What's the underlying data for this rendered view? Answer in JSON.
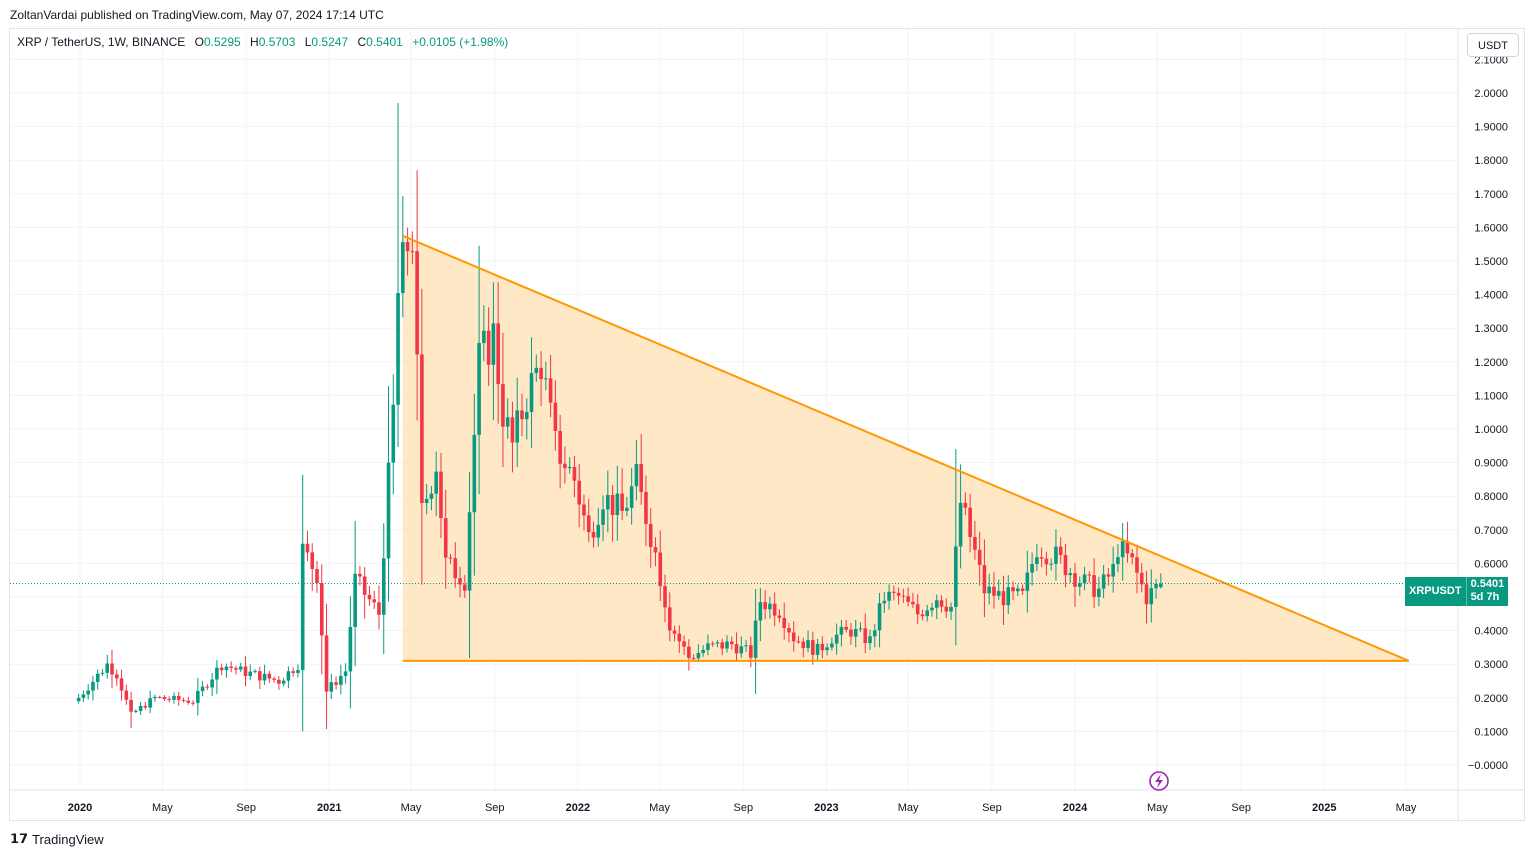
{
  "header": {
    "published": "ZoltanVardai published on TradingView.com, May 07, 2024 17:14 UTC"
  },
  "legend": {
    "symbol": "XRP / TetherUS, 1W, BINANCE",
    "o_label": "O",
    "o_value": "0.5295",
    "h_label": "H",
    "h_value": "0.5703",
    "l_label": "L",
    "l_value": "0.5247",
    "c_label": "C",
    "c_value": "0.5401",
    "change": "+0.0105 (+1.98%)"
  },
  "currency_button": "USDT",
  "price_tag": {
    "symbol": "XRPUSDT",
    "price": "0.5401",
    "countdown": "5d 7h"
  },
  "footer": {
    "brand": "TradingView"
  },
  "colors": {
    "up": "#089981",
    "down": "#f23645",
    "pattern_line": "#ff9800",
    "pattern_fill": "#ffe0b2"
  },
  "chart_data": {
    "type": "candlestick",
    "ylim": [
      -0.05,
      2.1
    ],
    "yticks": [
      "2.1000",
      "2.0000",
      "1.9000",
      "1.8000",
      "1.7000",
      "1.6000",
      "1.5000",
      "1.4000",
      "1.3000",
      "1.2000",
      "1.1000",
      "1.0000",
      "0.9000",
      "0.8000",
      "0.7000",
      "0.6000",
      "0.5000",
      "0.4000",
      "0.3000",
      "0.2000",
      "0.1000",
      "−0.0000"
    ],
    "ytick_values": [
      2.1,
      2.0,
      1.9,
      1.8,
      1.7,
      1.6,
      1.5,
      1.4,
      1.3,
      1.2,
      1.1,
      1.0,
      0.9,
      0.8,
      0.7,
      0.6,
      0.5,
      0.4,
      0.3,
      0.2,
      0.1,
      0.0
    ],
    "xticks": [
      "2020",
      "May",
      "Sep",
      "2021",
      "May",
      "Sep",
      "2022",
      "May",
      "Sep",
      "2023",
      "May",
      "Sep",
      "2024",
      "May",
      "Sep",
      "2025",
      "May"
    ],
    "xtick_bold": [
      true,
      false,
      false,
      true,
      false,
      false,
      true,
      false,
      false,
      true,
      false,
      false,
      true,
      false,
      false,
      true,
      false
    ],
    "last_price": 0.5401,
    "annotation": {
      "type": "descending_triangle",
      "top_start": {
        "date": "2021-04-19",
        "value": 1.575
      },
      "apex": {
        "date": "2025-05-05",
        "value": 0.31
      },
      "base": {
        "date": "2021-04-19",
        "value": 0.31
      }
    },
    "weekly_closes_sampled": [
      {
        "date": "2019-12-30",
        "open": 0.19,
        "high": 0.21,
        "low": 0.18,
        "close": 0.2
      },
      {
        "date": "2020-02-17",
        "open": 0.31,
        "high": 0.35,
        "low": 0.26,
        "close": 0.27
      },
      {
        "date": "2020-03-16",
        "open": 0.16,
        "high": 0.17,
        "low": 0.11,
        "close": 0.15
      },
      {
        "date": "2020-08-03",
        "open": 0.24,
        "high": 0.33,
        "low": 0.23,
        "close": 0.29
      },
      {
        "date": "2020-11-23",
        "open": 0.55,
        "high": 0.78,
        "low": 0.46,
        "close": 0.64
      },
      {
        "date": "2020-12-21",
        "open": 0.45,
        "high": 0.48,
        "low": 0.17,
        "close": 0.22
      },
      {
        "date": "2021-04-12",
        "open": 1.4,
        "high": 1.97,
        "low": 1.06,
        "close": 1.41
      },
      {
        "date": "2021-09-06",
        "open": 1.25,
        "high": 1.41,
        "low": 0.94,
        "close": 1.05
      },
      {
        "date": "2022-06-13",
        "open": 0.36,
        "high": 0.38,
        "low": 0.29,
        "close": 0.32
      },
      {
        "date": "2023-07-10",
        "open": 0.47,
        "high": 0.94,
        "low": 0.46,
        "close": 0.72
      },
      {
        "date": "2024-03-04",
        "open": 0.6,
        "high": 0.74,
        "low": 0.58,
        "close": 0.65
      },
      {
        "date": "2024-05-06",
        "open": 0.5295,
        "high": 0.5703,
        "low": 0.5247,
        "close": 0.5401
      }
    ]
  }
}
